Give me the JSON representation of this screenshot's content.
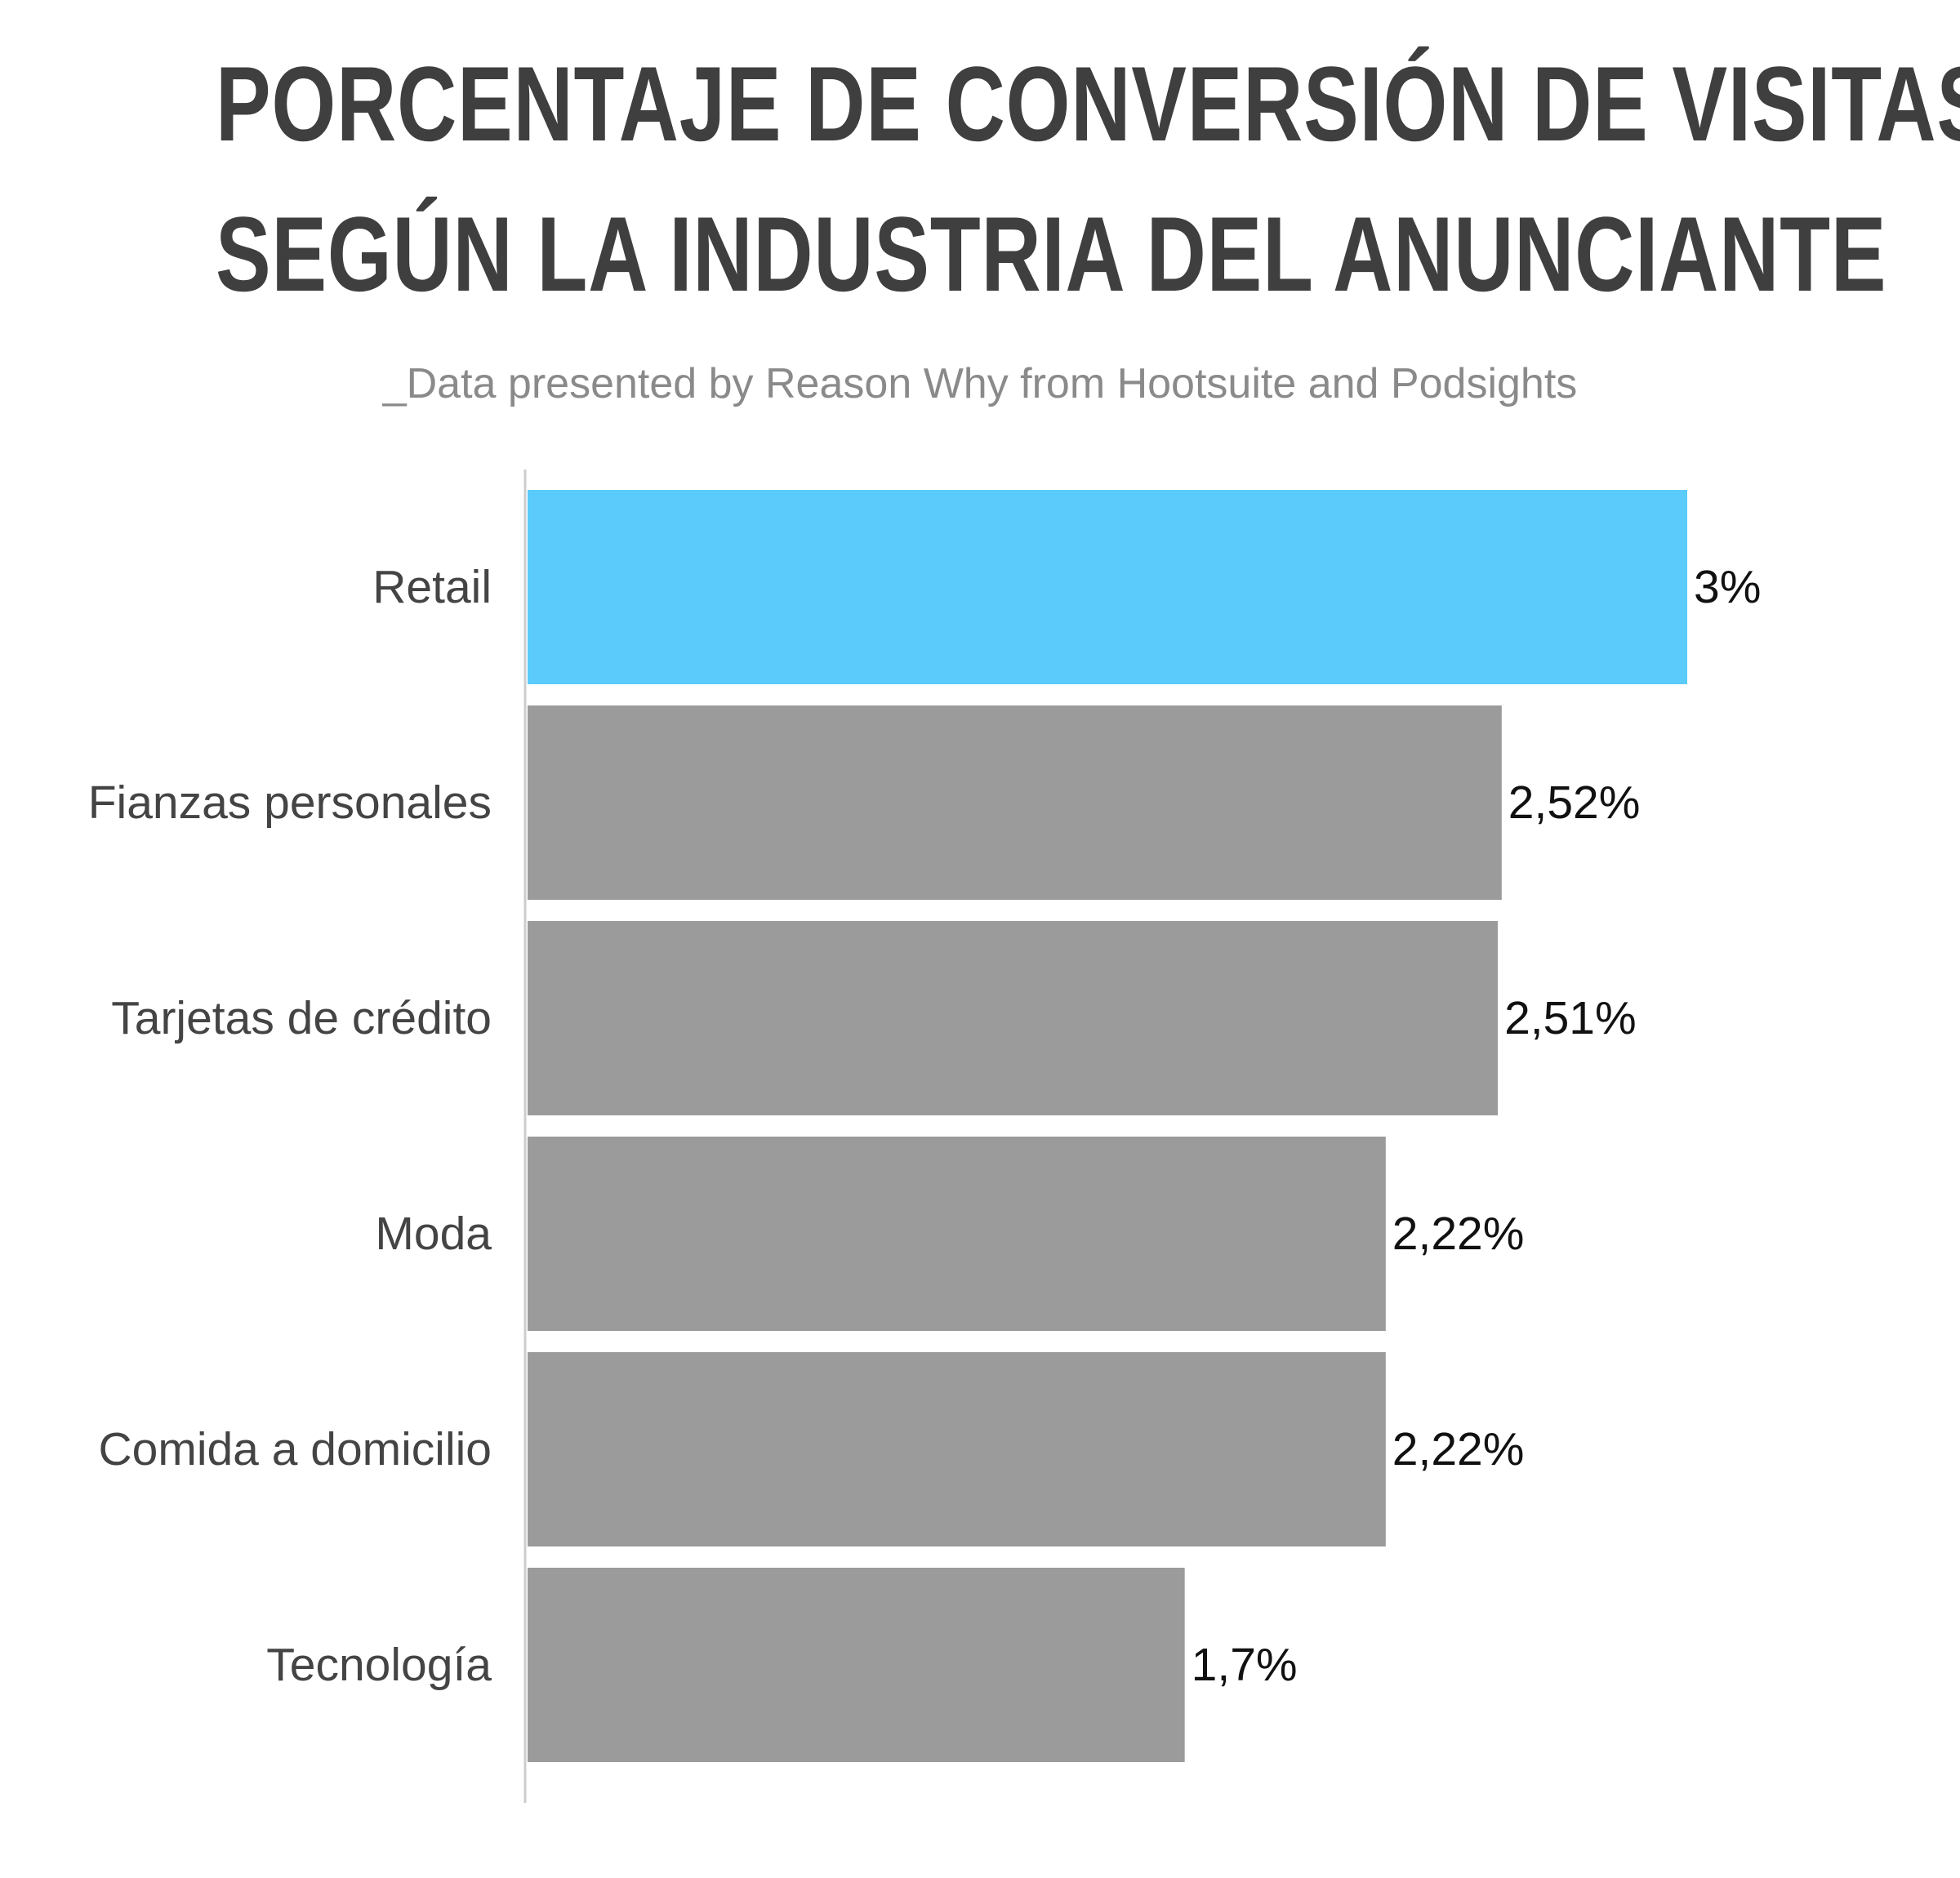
{
  "title_lines": [
    "PORCENTAJE DE CONVERSIÓN DE VISITAS",
    "SEGÚN LA INDUSTRIA DEL ANUNCIANTE"
  ],
  "subtitle": "_Data presented by Reason Why from Hootsuite and Podsights",
  "colors": {
    "highlight": "#5acbfa",
    "bar": "#9b9b9b",
    "axis": "#cccccc"
  },
  "chart_data": {
    "type": "bar",
    "orientation": "horizontal",
    "title": "PORCENTAJE DE CONVERSIÓN DE VISITAS SEGÚN LA INDUSTRIA DEL ANUNCIANTE",
    "subtitle": "_Data presented by Reason Why from Hootsuite and Podsights",
    "categories": [
      "Retail",
      "Fianzas personales",
      "Tarjetas de crédito",
      "Moda",
      "Comida a domicilio",
      "Tecnología"
    ],
    "values": [
      3,
      2.52,
      2.51,
      2.22,
      2.22,
      1.7
    ],
    "value_labels": [
      "3%",
      "2,52%",
      "2,51%",
      "2,22%",
      "2,22%",
      "1,7%"
    ],
    "highlighted_category": "Retail",
    "xlabel": "",
    "ylabel": "",
    "xlim": [
      0,
      3
    ],
    "grid": false,
    "legend": "none"
  }
}
